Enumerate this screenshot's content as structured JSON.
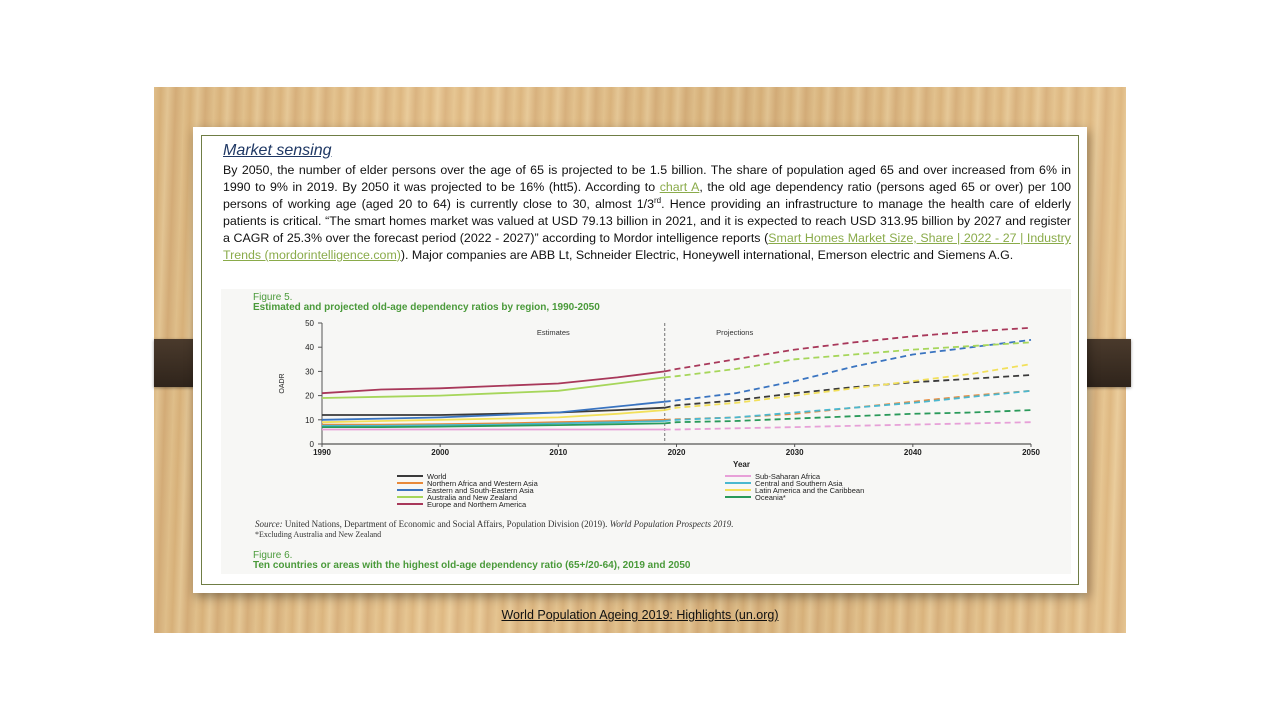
{
  "slide": {
    "heading": "Market sensing",
    "para_1": "By 2050, the number of elder persons over the age of 65 is projected to be 1.5 billion.  The share of population aged 65 and over increased from 6% in 1990 to 9% in 2019.  By 2050 it was projected to be 16%  (htt5). According to ",
    "link_1": "chart A",
    "para_2": ", the old age dependency ratio (persons aged 65 or over) per 100 persons of working age (aged 20 to 64) is currently close to 30, almost 1/3",
    "sup": "rd",
    "para_3": ".  Hence providing an infrastructure to manage the health care of elderly patients is critical.     “The smart homes market was valued at USD 79.13 billion in 2021, and it is expected to reach USD 313.95 billion by 2027 and register a CAGR of 25.3% over the forecast period (2022 - 2027)” according to Mordor intelligence reports (",
    "link_2": "Smart Homes Market Size, Share | 2022 - 27 | Industry Trends (mordorintelligence.com)",
    "para_4": "). Major companies are ABB Lt, Schneider Electric, Honeywell international, Emerson electric and Siemens A.G.",
    "caption": "World Population Ageing 2019: Highlights (un.org)"
  },
  "figure": {
    "label": "Figure 5.",
    "title": "Estimated and projected old-age dependency ratios by region, 1990-2050",
    "estimates_label": "Estimates",
    "projections_label": "Projections",
    "source_italic": "Source:",
    "source_text": " United Nations, Department of Economic and Social Affairs, Population Division (2019). ",
    "source_pub": "World Population Prospects 2019.",
    "footnote": "*Excluding Australia and New Zealand",
    "next_label": "Figure 6.",
    "next_title": "Ten countries or areas with the highest old-age dependency ratio (65+/20-64), 2019 and 2050"
  },
  "chart_data": {
    "type": "line",
    "xlabel": "Year",
    "ylabel": "OADR",
    "x": [
      1990,
      1995,
      2000,
      2005,
      2010,
      2015,
      2019,
      2020,
      2025,
      2030,
      2035,
      2040,
      2045,
      2050
    ],
    "xticks": [
      1990,
      2000,
      2010,
      2020,
      2030,
      2040,
      2050
    ],
    "yticks": [
      0,
      10,
      20,
      30,
      40,
      50
    ],
    "xlim": [
      1990,
      2050
    ],
    "ylim": [
      0,
      50
    ],
    "estimate_end": 2019,
    "series": [
      {
        "name": "World",
        "color": "#3a3a3a",
        "values": [
          12,
          12,
          12,
          12.5,
          13,
          14,
          15,
          16,
          18,
          21,
          23.5,
          25.5,
          27,
          28.5
        ]
      },
      {
        "name": "Northern Africa and Western Asia",
        "color": "#e8893a",
        "values": [
          8,
          8,
          8.2,
          8.5,
          9,
          9.5,
          10,
          10.2,
          11,
          12.5,
          15,
          17.5,
          20,
          22
        ]
      },
      {
        "name": "Eastern and South-Eastern Asia",
        "color": "#3a74c0",
        "values": [
          10,
          10.5,
          11,
          12,
          13,
          15.5,
          17.5,
          18,
          21,
          26,
          32,
          37,
          40,
          43
        ]
      },
      {
        "name": "Australia and New Zealand",
        "color": "#a6d65a",
        "values": [
          19,
          19.5,
          20,
          21,
          22,
          25,
          27.5,
          28,
          31,
          35,
          37,
          39,
          40.5,
          42
        ]
      },
      {
        "name": "Europe and Northern America",
        "color": "#a8385a",
        "values": [
          21,
          22.5,
          23,
          24,
          25,
          27.5,
          30,
          31,
          35,
          39,
          42,
          44.5,
          46.5,
          48
        ]
      },
      {
        "name": "Sub-Saharan Africa",
        "color": "#e7a0d8",
        "values": [
          6,
          6,
          6,
          6,
          6,
          6,
          6,
          6,
          6.5,
          7,
          7.5,
          8,
          8.5,
          9
        ]
      },
      {
        "name": "Central and Southern Asia",
        "color": "#4ab8d0",
        "values": [
          7.5,
          7.5,
          7.8,
          8,
          8.5,
          9,
          9.5,
          10,
          11,
          13,
          15,
          17,
          19.5,
          22
        ]
      },
      {
        "name": "Latin America and the Caribbean",
        "color": "#f2e05a",
        "values": [
          9,
          9.5,
          10,
          10.5,
          11,
          12.5,
          14,
          15,
          17,
          20,
          23,
          26,
          29,
          33
        ]
      },
      {
        "name": "Oceania*",
        "color": "#2a9a5a",
        "values": [
          7,
          7,
          7.2,
          7.5,
          7.8,
          8.2,
          8.5,
          9,
          9.5,
          10.5,
          11.5,
          12.5,
          13,
          14
        ]
      }
    ]
  }
}
